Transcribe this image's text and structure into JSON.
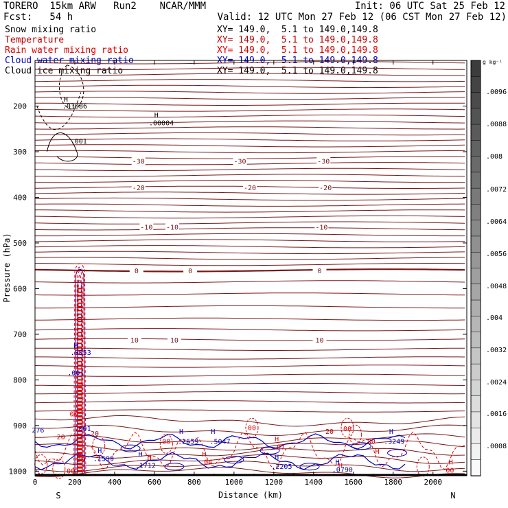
{
  "header": {
    "model_line": "TORERO  15km ARW   Run2    NCAR/MMM",
    "init": "Init: 06 UTC Sat 25 Feb 12",
    "fcst": "Fcst:   54 h",
    "valid": "Valid: 12 UTC Mon 27 Feb 12 (06 CST Mon 27 Feb 12)"
  },
  "legend": [
    {
      "label": "Snow mixing ratio",
      "xy": "XY= 149.0,  5.1 to 149.0,149.8",
      "color": "#000000"
    },
    {
      "label": "Temperature",
      "xy": "XY= 149.0,  5.1 to 149.0,149.8",
      "color": "#c00000"
    },
    {
      "label": "Rain water mixing ratio",
      "xy": "XY= 149.0,  5.1 to 149.0,149.8",
      "color": "#e00000"
    },
    {
      "label": "Cloud water mixing ratio",
      "xy": "XY= 149.0,  5.1 to 149.0,149.8",
      "color": "#0000c0"
    },
    {
      "label": "Cloud ice mixing ratio",
      "xy": "XY= 149.0,  5.1 to 149.0,149.8",
      "color": "#000000"
    }
  ],
  "chart_data": {
    "type": "contour",
    "xlabel": "Distance (km)",
    "ylabel": "Pressure (hPa)",
    "xlim": [
      0,
      2170
    ],
    "ylim": [
      1010,
      100
    ],
    "x_ticks": [
      "0",
      "200",
      "400",
      "600",
      "800",
      "1000",
      "1200",
      "1400",
      "1600",
      "1800",
      "2000"
    ],
    "y_ticks": [
      "200",
      "300",
      "400",
      "500",
      "600",
      "700",
      "800",
      "900",
      "1000"
    ],
    "endpoint_left": "S",
    "endpoint_right": "N",
    "colorbar": {
      "unit": "g kg⁻¹",
      "labels": [
        ".0096",
        ".0088",
        ".008",
        ".0072",
        ".0064",
        ".0056",
        ".0048",
        ".004",
        ".0032",
        ".0024",
        ".0016",
        ".0008"
      ]
    },
    "temperature_contours": [
      {
        "label": "-30",
        "level_hpa": 320,
        "label_x_km": [
          520,
          1030,
          1450
        ]
      },
      {
        "label": "-20",
        "level_hpa": 378,
        "label_x_km": [
          520,
          1080,
          1460
        ]
      },
      {
        "label": "-10",
        "level_hpa": 465,
        "label_x_km": [
          560,
          690,
          1440
        ]
      },
      {
        "label": "0",
        "level_hpa": 560,
        "label_x_km": [
          510,
          780,
          1430
        ]
      },
      {
        "label": "10",
        "level_hpa": 712,
        "label_x_km": [
          500,
          700,
          1430
        ]
      }
    ],
    "annotations": [
      {
        "text": "H",
        "x_km": 155,
        "p_hpa": 190,
        "color": "#000000"
      },
      {
        "text": ".03086",
        "x_km": 200,
        "p_hpa": 205,
        "color": "#000000"
      },
      {
        "text": "H",
        "x_km": 610,
        "p_hpa": 225,
        "color": "#000000"
      },
      {
        "text": ".00004",
        "x_km": 635,
        "p_hpa": 242,
        "color": "#000000"
      },
      {
        "text": ".001",
        "x_km": 220,
        "p_hpa": 282,
        "color": "#000000"
      },
      {
        "text": "H",
        "x_km": 205,
        "p_hpa": 730,
        "color": "#0000c0"
      },
      {
        "text": ".0053",
        "x_km": 230,
        "p_hpa": 745,
        "color": "#0000c0"
      },
      {
        "text": ".001",
        "x_km": 205,
        "p_hpa": 790,
        "color": "#0000c0"
      },
      {
        "text": "00",
        "x_km": 195,
        "p_hpa": 880,
        "color": "#e00000"
      },
      {
        "text": ".001",
        "x_km": 240,
        "p_hpa": 912,
        "color": "#0000c0"
      },
      {
        "text": "276",
        "x_km": 15,
        "p_hpa": 915,
        "color": "#0000c0"
      },
      {
        "text": "20",
        "x_km": 300,
        "p_hpa": 923,
        "color": "#c00000"
      },
      {
        "text": "20",
        "x_km": 130,
        "p_hpa": 930,
        "color": "#c00000"
      },
      {
        "text": "H",
        "x_km": 325,
        "p_hpa": 960,
        "color": "#0000c0"
      },
      {
        "text": ".1599",
        "x_km": 345,
        "p_hpa": 978,
        "color": "#0000c0"
      },
      {
        "text": "H",
        "x_km": 530,
        "p_hpa": 968,
        "color": "#0000c0"
      },
      {
        "text": ".1712",
        "x_km": 555,
        "p_hpa": 993,
        "color": "#0000c0"
      },
      {
        "text": "H",
        "x_km": 575,
        "p_hpa": 975,
        "color": "#e00000"
      },
      {
        "text": "H",
        "x_km": 735,
        "p_hpa": 918,
        "color": "#0000c0"
      },
      {
        "text": ".2659",
        "x_km": 770,
        "p_hpa": 940,
        "color": "#0000c0"
      },
      {
        "text": "00",
        "x_km": 660,
        "p_hpa": 940,
        "color": "#e00000"
      },
      {
        "text": "H",
        "x_km": 895,
        "p_hpa": 918,
        "color": "#0000c0"
      },
      {
        "text": ".5047",
        "x_km": 930,
        "p_hpa": 940,
        "color": "#0000c0"
      },
      {
        "text": "H",
        "x_km": 850,
        "p_hpa": 968,
        "color": "#e00000"
      },
      {
        "text": ".04",
        "x_km": 860,
        "p_hpa": 985,
        "color": "#e00000"
      },
      {
        "text": "00",
        "x_km": 1090,
        "p_hpa": 910,
        "color": "#e00000"
      },
      {
        "text": "H",
        "x_km": 1215,
        "p_hpa": 935,
        "color": "#e00000"
      },
      {
        "text": ".07",
        "x_km": 1225,
        "p_hpa": 952,
        "color": "#e00000"
      },
      {
        "text": "H",
        "x_km": 1215,
        "p_hpa": 975,
        "color": "#0000c0"
      },
      {
        "text": ".2205",
        "x_km": 1240,
        "p_hpa": 995,
        "color": "#0000c0"
      },
      {
        "text": "20",
        "x_km": 1480,
        "p_hpa": 918,
        "color": "#c00000"
      },
      {
        "text": "00",
        "x_km": 1570,
        "p_hpa": 912,
        "color": "#e00000"
      },
      {
        "text": "H",
        "x_km": 1520,
        "p_hpa": 985,
        "color": "#0000c0"
      },
      {
        "text": ".0790",
        "x_km": 1545,
        "p_hpa": 1002,
        "color": "#0000c0"
      },
      {
        "text": "H",
        "x_km": 1535,
        "p_hpa": 993,
        "color": "#e00000"
      },
      {
        "text": "20",
        "x_km": 1690,
        "p_hpa": 940,
        "color": "#c00000"
      },
      {
        "text": "H",
        "x_km": 1790,
        "p_hpa": 918,
        "color": "#0000c0"
      },
      {
        "text": ".3249",
        "x_km": 1805,
        "p_hpa": 940,
        "color": "#0000c0"
      },
      {
        "text": "H",
        "x_km": 1720,
        "p_hpa": 962,
        "color": "#e00000"
      },
      {
        "text": "H",
        "x_km": 2090,
        "p_hpa": 985,
        "color": "#e00000"
      },
      {
        "text": "00",
        "x_km": 2085,
        "p_hpa": 1003,
        "color": "#e00000"
      },
      {
        "text": "00",
        "x_km": 180,
        "p_hpa": 1005,
        "color": "#e00000"
      },
      {
        "text": "00",
        "x_km": 230,
        "p_hpa": 980,
        "color": "#e00000"
      }
    ]
  }
}
